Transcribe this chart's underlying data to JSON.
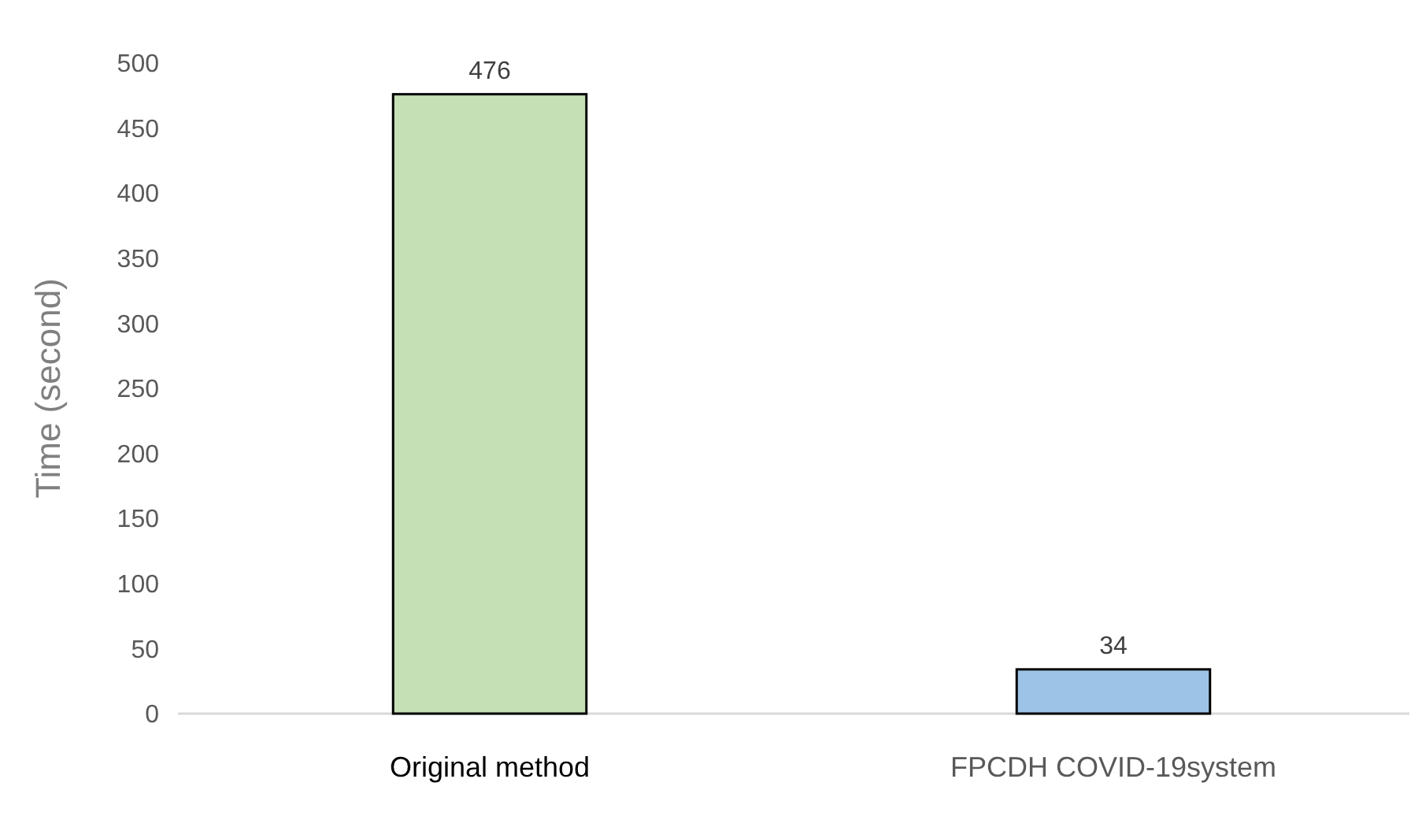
{
  "chart_data": {
    "type": "bar",
    "ylabel": "Time (second)",
    "categories": [
      "Original method",
      "FPCDH COVID-19system"
    ],
    "values": [
      476,
      34
    ],
    "colors": [
      "#c5e0b4",
      "#9dc3e6"
    ],
    "ylim": [
      0,
      500
    ],
    "yticks": [
      0,
      50,
      100,
      150,
      200,
      250,
      300,
      350,
      400,
      450,
      500
    ],
    "data_labels": true,
    "grid": false
  }
}
